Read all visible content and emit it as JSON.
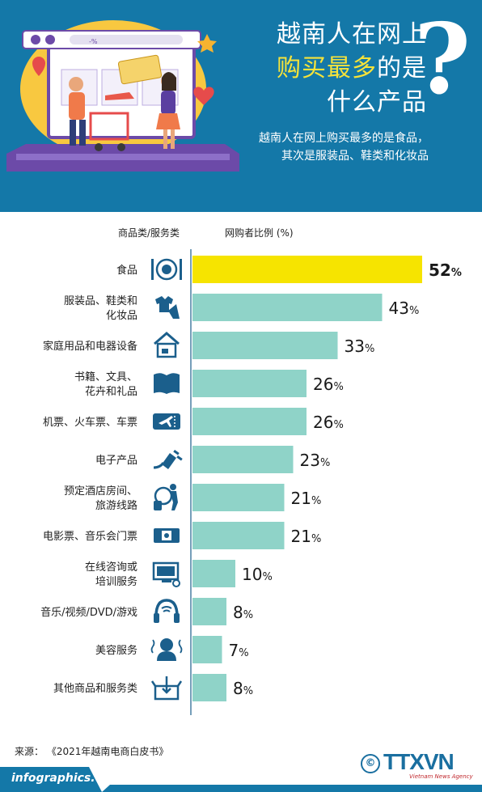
{
  "header": {
    "title_line1": "越南人在网上",
    "title_line2_highlight": "购买最多",
    "title_line2_rest": "的是",
    "title_line3": "什么产品",
    "question_mark": "?",
    "subtitle_line1": "越南人在网上购买最多的是食品，",
    "subtitle_line2": "其次是服装品、鞋类和化妆品",
    "browser_address": "-%",
    "colors": {
      "background": "#1478a8",
      "highlight": "#f6e33a"
    }
  },
  "columns": {
    "category_header": "商品类/服务类",
    "value_header": "网购者比例 (%)"
  },
  "chart_data": {
    "type": "bar",
    "orientation": "horizontal",
    "categories": [
      [
        "食品"
      ],
      [
        "服装品、鞋类和",
        "化妆品"
      ],
      [
        "家庭用品和电器设备"
      ],
      [
        "书籍、文具、",
        "花卉和礼品"
      ],
      [
        "机票、火车票、车票"
      ],
      [
        "电子产品"
      ],
      [
        "预定酒店房间、",
        "旅游线路"
      ],
      [
        "电影票、音乐会门票"
      ],
      [
        "在线咨询或",
        "培训服务"
      ],
      [
        "音乐/视频/DVD/游戏"
      ],
      [
        "美容服务"
      ],
      [
        "其他商品和服务类"
      ]
    ],
    "icons": [
      "plate-cutlery-icon",
      "clothes-icon",
      "house-icon",
      "book-icon",
      "ticket-icon",
      "plug-icon",
      "traveler-icon",
      "film-ticket-icon",
      "online-training-icon",
      "headphones-icon",
      "beauty-icon",
      "box-icon"
    ],
    "values": [
      52,
      43,
      33,
      26,
      26,
      23,
      21,
      21,
      10,
      8,
      7,
      8
    ],
    "unit": "%",
    "xlim": [
      0,
      52
    ],
    "highlight_index": 0,
    "colors": {
      "highlight": "#f6e400",
      "bar": "#8fd3c8",
      "icon": "#1b5f8c"
    }
  },
  "source": "来源：  《2021年越南电商白皮书》",
  "footer": {
    "site": "infographics.vn",
    "copyright": "©",
    "logo": "TTXVN",
    "logo_sub": "Vietnam News Agency"
  }
}
